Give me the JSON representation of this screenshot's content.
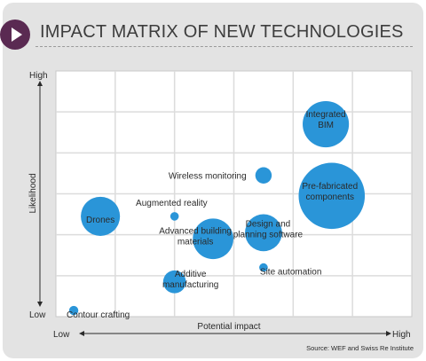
{
  "header": {
    "title": "IMPACT MATRIX OF NEW TECHNOLOGIES",
    "icon": "play-icon"
  },
  "source": "Source: WEF and Swiss Re Institute",
  "colors": {
    "bubble": "#2a95d8",
    "panel": "#e3e3e3",
    "grid": "#dcdcdc",
    "icon": "#5a2a52"
  },
  "chart_data": {
    "type": "scatter",
    "title": "IMPACT MATRIX OF NEW TECHNOLOGIES",
    "xlabel": "Potential impact",
    "ylabel": "Likelihood",
    "x_low": "Low",
    "x_high": "High",
    "y_low": "Low",
    "y_high": "High",
    "xlim": [
      0,
      6
    ],
    "ylim": [
      0,
      6
    ],
    "grid": true,
    "bubbles": [
      {
        "name": "Integrated BIM",
        "x": 4.55,
        "y": 4.7,
        "size": 0.65
      },
      {
        "name": "Wireless monitoring",
        "x": 3.5,
        "y": 3.45,
        "size": 0.23
      },
      {
        "name": "Pre-fabricated components",
        "x": 4.65,
        "y": 2.95,
        "size": 0.93
      },
      {
        "name": "Augmented reality",
        "x": 2.0,
        "y": 2.45,
        "size": 0.12
      },
      {
        "name": "Drones",
        "x": 0.75,
        "y": 2.45,
        "size": 0.55
      },
      {
        "name": "Advanced building materials",
        "x": 2.65,
        "y": 1.9,
        "size": 0.57
      },
      {
        "name": "Design and planning software",
        "x": 3.5,
        "y": 2.05,
        "size": 0.52
      },
      {
        "name": "Site automation",
        "x": 3.5,
        "y": 1.2,
        "size": 0.12
      },
      {
        "name": "Additive manufacturing",
        "x": 2.0,
        "y": 0.85,
        "size": 0.32
      },
      {
        "name": "Contour crafting",
        "x": 0.3,
        "y": 0.15,
        "size": 0.13
      }
    ]
  }
}
